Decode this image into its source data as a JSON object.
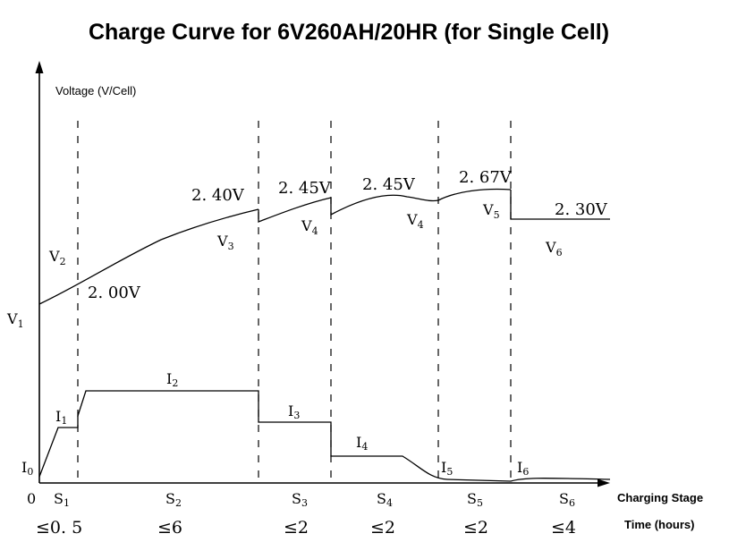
{
  "chart_data": {
    "type": "line",
    "title": "Charge Curve for 6V260AH/20HR (for Single Cell)",
    "ylabel": "Voltage (V/Cell)",
    "xlabel": "Charging Stage",
    "time_axis_label": "Time (hours)",
    "origin_label": "0",
    "stages": [
      {
        "label": "S",
        "sub": "1",
        "time": "≤0. 5"
      },
      {
        "label": "S",
        "sub": "2",
        "time": "≤6"
      },
      {
        "label": "S",
        "sub": "3",
        "time": "≤2"
      },
      {
        "label": "S",
        "sub": "4",
        "time": "≤2"
      },
      {
        "label": "S",
        "sub": "5",
        "time": "≤2"
      },
      {
        "label": "S",
        "sub": "6",
        "time": "≤4"
      }
    ],
    "voltage_markers": [
      {
        "label": "V",
        "sub": "1"
      },
      {
        "label": "V",
        "sub": "2"
      },
      {
        "label": "V",
        "sub": "3"
      },
      {
        "label": "V",
        "sub": "4"
      },
      {
        "label": "V",
        "sub": "4"
      },
      {
        "label": "V",
        "sub": "5"
      },
      {
        "label": "V",
        "sub": "6"
      }
    ],
    "voltage_values": [
      "2. 00V",
      "2. 40V",
      "2. 45V",
      "2. 45V",
      "2. 67V",
      "2. 30V"
    ],
    "current_markers": [
      {
        "label": "I",
        "sub": "0"
      },
      {
        "label": "I",
        "sub": "1"
      },
      {
        "label": "I",
        "sub": "2"
      },
      {
        "label": "I",
        "sub": "3"
      },
      {
        "label": "I",
        "sub": "4"
      },
      {
        "label": "I",
        "sub": "5"
      },
      {
        "label": "I",
        "sub": "6"
      }
    ]
  }
}
